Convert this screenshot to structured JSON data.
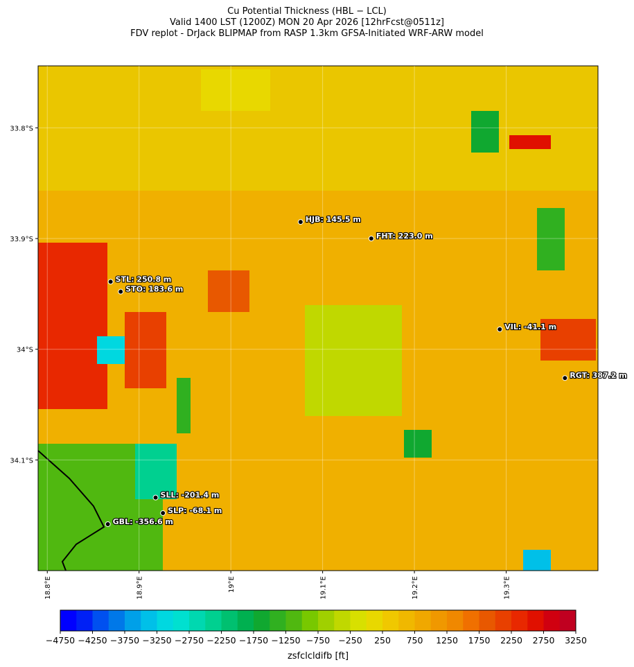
{
  "title_lines": [
    "Cu Potential Thickness (HBL − LCL)",
    "Valid 1400 LST (1200Z) MON 20 Apr 2026 [12hrFcst@0511z]",
    "FDV replot - DrJack BLIPMAP from RASP 1.3km GFSA-Initiated WRF-ARW model"
  ],
  "map": {
    "xlim": [
      18.79,
      19.4
    ],
    "ylim": [
      -34.2,
      -33.744
    ],
    "grid": true,
    "xticks": [
      {
        "value": 18.8,
        "label": "18.8°E"
      },
      {
        "value": 18.9,
        "label": "18.9°E"
      },
      {
        "value": 19.0,
        "label": "19°E"
      },
      {
        "value": 19.1,
        "label": "19.1°E"
      },
      {
        "value": 19.2,
        "label": "19.2°E"
      },
      {
        "value": 19.3,
        "label": "19.3°E"
      }
    ],
    "yticks": [
      {
        "value": -33.8,
        "label": "33.8°S"
      },
      {
        "value": -33.9,
        "label": "33.9°S"
      },
      {
        "value": -34.0,
        "label": "34°S"
      },
      {
        "value": -34.1,
        "label": "34.1°S"
      }
    ],
    "stations": [
      {
        "label": "HJB: 145.5 m",
        "lon": 19.076,
        "lat": -33.885
      },
      {
        "label": "FHT: 223.0 m",
        "lon": 19.153,
        "lat": -33.9
      },
      {
        "label": "STL: 250.8 m",
        "lon": 18.869,
        "lat": -33.939
      },
      {
        "label": "STO: 183.6 m",
        "lon": 18.88,
        "lat": -33.948
      },
      {
        "label": "VIL: -41.1 m",
        "lon": 19.293,
        "lat": -33.982
      },
      {
        "label": "RGT: 387.2 m",
        "lon": 19.364,
        "lat": -34.026
      },
      {
        "label": "SLL: -201.4 m",
        "lon": 18.918,
        "lat": -34.134
      },
      {
        "label": "SLP: -68.1 m",
        "lon": 18.926,
        "lat": -34.148
      },
      {
        "label": "GBL: -356.6 m",
        "lon": 18.866,
        "lat": -34.158
      }
    ]
  },
  "colorbar": {
    "label": "zsfclcldifb [ft]",
    "lim": [
      -4750,
      3250
    ],
    "colors": [
      "#0000ff",
      "#0020f5",
      "#0050f0",
      "#0078e8",
      "#00a0e8",
      "#00c0e8",
      "#00d8e0",
      "#00e0d0",
      "#00d8b0",
      "#00d090",
      "#00c070",
      "#00b050",
      "#10a830",
      "#30b020",
      "#50b810",
      "#78c800",
      "#a0d000",
      "#c0d800",
      "#d8e000",
      "#e8d800",
      "#f0c800",
      "#f0b800",
      "#f0a800",
      "#f09800",
      "#f08800",
      "#f07000",
      "#e85800",
      "#e84000",
      "#e82800",
      "#e01000",
      "#d00010",
      "#c00020"
    ],
    "ticks": [
      {
        "value": -4750,
        "label": "−4750"
      },
      {
        "value": -4250,
        "label": "−4250"
      },
      {
        "value": -3750,
        "label": "−3750"
      },
      {
        "value": -3250,
        "label": "−3250"
      },
      {
        "value": -2750,
        "label": "−2750"
      },
      {
        "value": -2250,
        "label": "−2250"
      },
      {
        "value": -1750,
        "label": "−1750"
      },
      {
        "value": -1250,
        "label": "−1250"
      },
      {
        "value": -750,
        "label": "−750"
      },
      {
        "value": -250,
        "label": "−250"
      },
      250,
      750,
      1250,
      1750,
      2250,
      2750,
      3250
    ]
  }
}
